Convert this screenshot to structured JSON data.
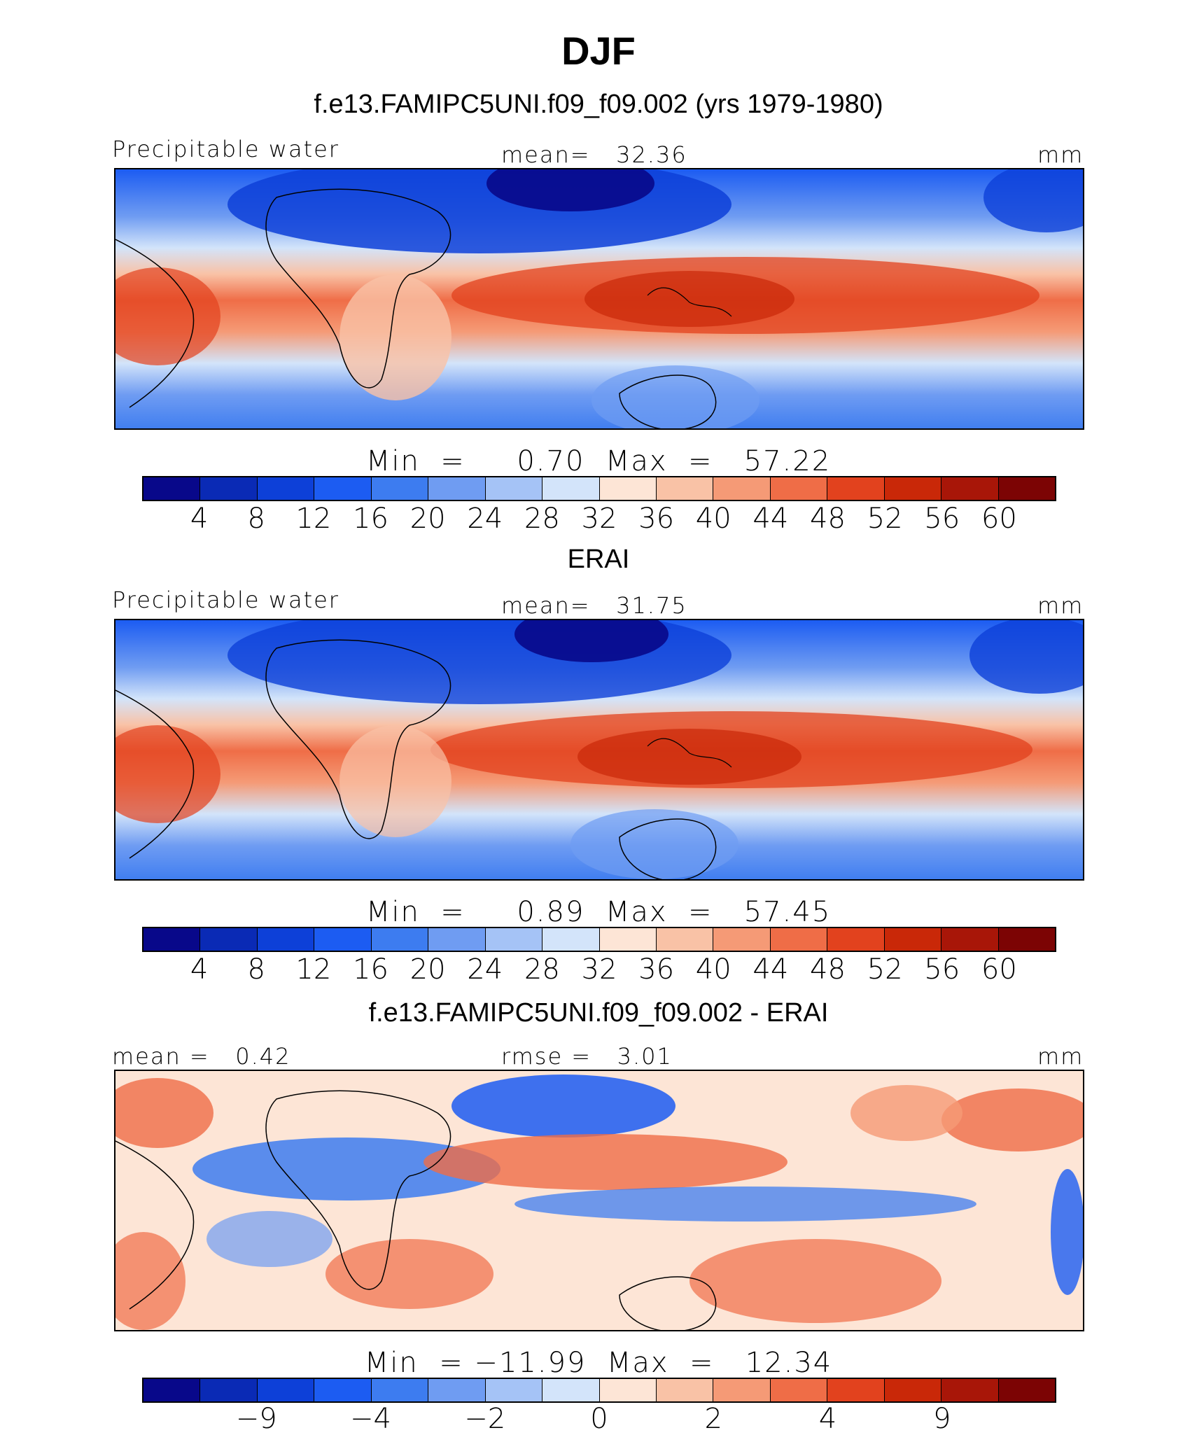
{
  "title": "DJF",
  "colors": {
    "abs": [
      "#08088a",
      "#0a2ab5",
      "#0d40d8",
      "#1c5cf2",
      "#3d7cf0",
      "#6f9cf2",
      "#a5c3f6",
      "#d3e4fa",
      "#fde5d6",
      "#f9c2a6",
      "#f59a76",
      "#ef6d47",
      "#e2421e",
      "#c92808",
      "#a81608",
      "#7c0404"
    ],
    "diff": [
      "#08088a",
      "#0a2ab5",
      "#0d40d8",
      "#1c5cf2",
      "#3d7cf0",
      "#6f9cf2",
      "#a5c3f6",
      "#d3e4fa",
      "#fde5d6",
      "#f9c2a6",
      "#f59a76",
      "#ef6d47",
      "#e2421e",
      "#c92808",
      "#a81608",
      "#7c0404"
    ]
  },
  "chart_data": [
    {
      "type": "heatmap",
      "title": "f.e13.FAMIPC5UNI.f09_f09.002 (yrs 1979-1980)",
      "variable": "Precipitable water",
      "units": "mm",
      "mean_label": "mean=",
      "mean": "32.36",
      "min": "0.70",
      "max": "57.22",
      "levels": [
        "4",
        "8",
        "12",
        "16",
        "20",
        "24",
        "28",
        "32",
        "36",
        "40",
        "44",
        "48",
        "52",
        "56",
        "60"
      ]
    },
    {
      "type": "heatmap",
      "title": "ERAI",
      "variable": "Precipitable water",
      "units": "mm",
      "mean_label": "mean=",
      "mean": "31.75",
      "min": "0.89",
      "max": "57.45",
      "levels": [
        "4",
        "8",
        "12",
        "16",
        "20",
        "24",
        "28",
        "32",
        "36",
        "40",
        "44",
        "48",
        "52",
        "56",
        "60"
      ]
    },
    {
      "type": "heatmap",
      "title": "f.e13.FAMIPC5UNI.f09_f09.002 - ERAI",
      "mean_label": "mean =",
      "mean": "0.42",
      "rmse_label": "rmse =",
      "rmse": "3.01",
      "units": "mm",
      "min": "−11.99",
      "max": "12.34",
      "levels": [
        "−9",
        "−4",
        "−2",
        "0",
        "2",
        "4",
        "9"
      ]
    }
  ],
  "labels": {
    "min_word": "Min",
    "max_word": "Max",
    "eq": "="
  }
}
